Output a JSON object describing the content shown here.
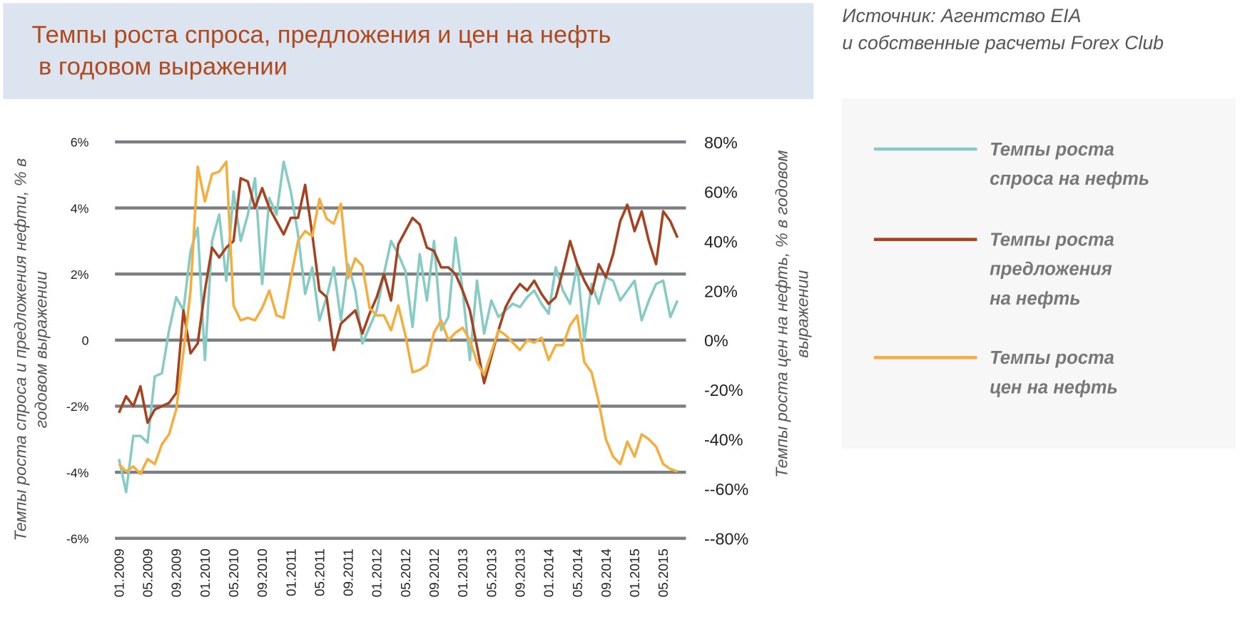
{
  "header": {
    "title": "Темпы роста спроса, предложения и цен на нефть\n в годовом выражении"
  },
  "source": "Источник: Агентство EIA\nи собственные расчеты Forex Club",
  "colors": {
    "demand": "#86cbc4",
    "supply": "#a5421f",
    "price": "#f5ae3d",
    "grid": "#7b7f82",
    "header_bg": "#dce5ef",
    "title": "#b0491f"
  },
  "chart_data": {
    "type": "line",
    "title": "Темпы роста спроса, предложения и цен на нефть в годовом выражении",
    "ylabel": "Темпы роста спроса и предложения нефти, % в годовом выражении",
    "y2label": "Темпы роста цен на нефть, % в годовом выражении",
    "ylim": [
      -6,
      6
    ],
    "y2lim": [
      -80,
      80
    ],
    "yticks": [
      "6%",
      "4%",
      "2%",
      "0",
      "-2%",
      "-4%",
      "-6%"
    ],
    "y2ticks": [
      "80%",
      "60%",
      "40%",
      "20%",
      "0%",
      "-20%",
      "-40%",
      "--60%",
      "--80%"
    ],
    "xticks": [
      "01.2009",
      "05.2009",
      "09.2009",
      "01.2010",
      "05.2010",
      "09.2010",
      "01.2011",
      "05.2011",
      "09.2011",
      "01.2012",
      "05.2012",
      "09.2012",
      "01.2013",
      "05.2013",
      "09.2013",
      "01.2014",
      "05.2014",
      "09.2014",
      "01.2015",
      "05.2015"
    ],
    "x_start": "01.2009",
    "x_frequency": "monthly",
    "grid": true,
    "legend_position": "right",
    "series": [
      {
        "name": "Темпы роста спроса на нефть",
        "axis": "left",
        "color": "#86cbc4",
        "values": [
          -3.6,
          -4.6,
          -2.9,
          -2.9,
          -3.1,
          -1.1,
          -1.0,
          0.3,
          1.3,
          0.9,
          2.7,
          3.4,
          -0.6,
          3.0,
          3.8,
          1.8,
          4.5,
          3.0,
          3.8,
          4.9,
          1.7,
          4.3,
          3.8,
          5.4,
          4.5,
          3.2,
          1.4,
          2.2,
          0.6,
          1.3,
          2.2,
          0.6,
          2.3,
          1.5,
          -0.1,
          0.4,
          0.9,
          2.0,
          3.0,
          2.6,
          2.1,
          0.4,
          2.6,
          1.2,
          3.0,
          0.3,
          0.7,
          3.1,
          1.5,
          -0.6,
          1.8,
          0.2,
          1.2,
          0.7,
          0.9,
          1.1,
          1.0,
          1.3,
          1.5,
          1.1,
          0.8,
          2.2,
          1.5,
          1.1,
          2.3,
          0.0,
          1.7,
          1.1,
          1.9,
          1.8,
          1.2,
          1.5,
          1.8,
          0.6,
          1.2,
          1.7,
          1.8,
          0.7,
          1.2
        ]
      },
      {
        "name": "Темпы роста предложения на нефть",
        "axis": "left",
        "color": "#a5421f",
        "values": [
          -2.2,
          -1.7,
          -2.0,
          -1.4,
          -2.5,
          -2.1,
          -2.0,
          -1.9,
          -1.6,
          0.9,
          -0.4,
          -0.1,
          1.5,
          2.8,
          2.5,
          2.8,
          3.0,
          4.9,
          4.8,
          4.0,
          4.6,
          4.0,
          3.6,
          3.2,
          3.7,
          3.7,
          4.7,
          3.2,
          1.5,
          1.3,
          -0.3,
          0.5,
          0.7,
          0.9,
          0.2,
          0.8,
          1.3,
          2.0,
          1.2,
          2.9,
          3.3,
          3.7,
          3.5,
          2.8,
          2.7,
          2.2,
          2.2,
          2.0,
          1.5,
          0.9,
          -0.2,
          -1.3,
          -0.5,
          0.3,
          1.0,
          1.4,
          1.7,
          1.5,
          1.8,
          1.4,
          1.1,
          1.3,
          2.1,
          3.0,
          2.3,
          1.8,
          1.4,
          2.3,
          1.9,
          2.6,
          3.6,
          4.1,
          3.3,
          3.9,
          3.0,
          2.3,
          3.9,
          3.6,
          3.1
        ]
      },
      {
        "name": "Темпы роста цен на нефть",
        "axis": "right",
        "color": "#f5ae3d",
        "values": [
          -50,
          -53,
          -51,
          -54,
          -48,
          -50,
          -42,
          -38,
          -28,
          -5,
          20,
          70,
          56,
          67,
          68,
          72,
          14,
          8,
          9,
          8,
          13,
          20,
          10,
          9,
          25,
          40,
          44,
          42,
          57,
          49,
          47,
          55,
          25,
          33,
          30,
          13,
          10,
          10,
          4,
          14,
          2,
          -13,
          -12,
          -10,
          3,
          8,
          0,
          3,
          5,
          0,
          -9,
          -14,
          -5,
          4,
          2,
          -1,
          -4,
          0,
          -1,
          1,
          -8,
          -2,
          -2,
          6,
          10,
          -9,
          -13,
          -25,
          -40,
          -47,
          -50,
          -41,
          -47,
          -38,
          -40,
          -43,
          -50,
          -52,
          -53
        ]
      }
    ]
  },
  "legend": [
    {
      "label": "Темпы роста спроса на нефть",
      "text": "Темпы роста\nспроса на нефть"
    },
    {
      "label": "Темпы роста предложения на нефть",
      "text": "Темпы роста\nпредложения\nна нефть"
    },
    {
      "label": "Темпы роста цен на нефть",
      "text": "Темпы роста\nцен на нефть"
    }
  ],
  "axis_titles": {
    "left": "Темпы роста спроса и предложения нефти, % в\nгодовом выражении",
    "right": "Темпы роста цен на нефть, % в годовом\nвыражении"
  }
}
